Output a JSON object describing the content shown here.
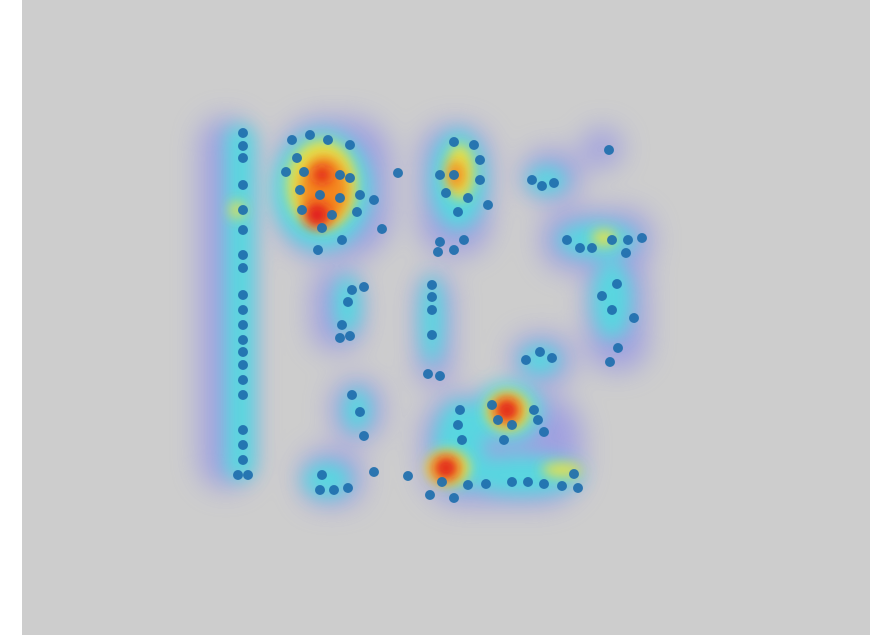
{
  "image": {
    "description_free": true,
    "colors": {
      "page_background": "#ffffff",
      "panel_background": "#cdcdcd",
      "point_color": "#1f6fae",
      "heat_low": "#6a6cff",
      "heat_mid": "#4ce0e0",
      "heat_high": "#f5e23a",
      "heat_peak": "#e0141a"
    }
  }
}
